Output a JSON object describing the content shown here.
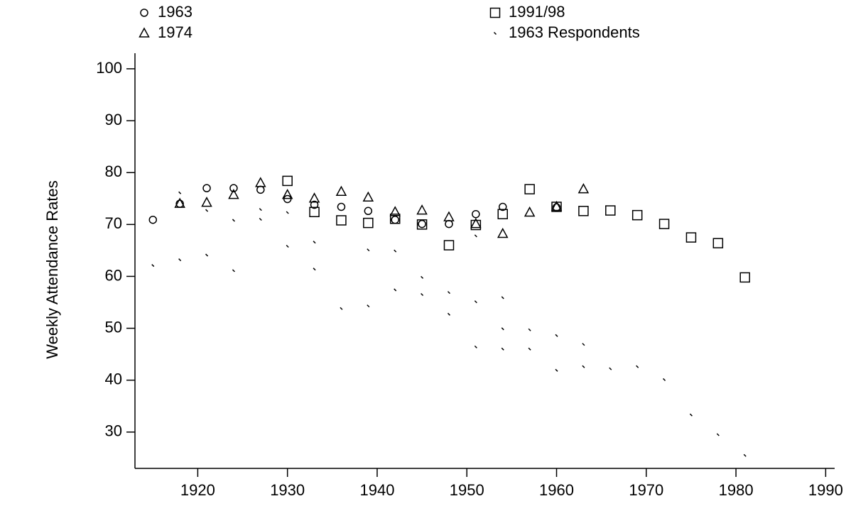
{
  "chart_data": {
    "type": "scatter",
    "y_label": "Weekly Attendance Rates",
    "xlim": [
      1913,
      1991
    ],
    "xticks": [
      1920,
      1930,
      1940,
      1950,
      1960,
      1970,
      1980,
      1990
    ],
    "ylim": [
      23,
      103
    ],
    "yticks": [
      30,
      40,
      50,
      60,
      70,
      80,
      90,
      100
    ],
    "series": [
      {
        "name": "1963",
        "marker": "circle",
        "color": "#000000",
        "x": [
          1915,
          1918,
          1921,
          1924,
          1927,
          1930,
          1933,
          1936,
          1939,
          1942,
          1945,
          1948,
          1951,
          1954,
          1960
        ],
        "values": [
          70.9,
          74,
          77,
          77,
          76.7,
          74.9,
          73.8,
          73.4,
          72.6,
          70.9,
          70.1,
          70.1,
          72,
          73.4,
          73.3
        ]
      },
      {
        "name": "1974",
        "marker": "triangle",
        "color": "#000000",
        "x": [
          1918,
          1921,
          1924,
          1927,
          1930,
          1933,
          1936,
          1939,
          1942,
          1945,
          1948,
          1951,
          1954,
          1957,
          1960,
          1963
        ],
        "values": [
          74,
          74.2,
          75.7,
          78,
          75.7,
          75,
          76.3,
          75.2,
          72.4,
          72.7,
          71.4,
          70.1,
          68.2,
          72.3,
          73.4,
          76.8
        ]
      },
      {
        "name": "1991/98",
        "marker": "square",
        "color": "#000000",
        "x": [
          1930,
          1933,
          1936,
          1939,
          1942,
          1945,
          1948,
          1951,
          1954,
          1957,
          1960,
          1963,
          1966,
          1969,
          1972,
          1975,
          1978,
          1981
        ],
        "values": [
          78.4,
          72.4,
          70.8,
          70.3,
          71.1,
          70,
          66,
          69.9,
          72,
          76.8,
          73.4,
          72.6,
          72.7,
          71.8,
          70.1,
          67.5,
          66.4,
          59.8
        ]
      },
      {
        "name": "1963 Respondents",
        "marker": "dot",
        "color": "#000000",
        "x": [
          1915,
          1918,
          1918,
          1921,
          1921,
          1924,
          1924,
          1927,
          1927,
          1930,
          1930,
          1933,
          1933,
          1936,
          1939,
          1939,
          1942,
          1942,
          1945,
          1945,
          1948,
          1948,
          1951,
          1951,
          1951,
          1954,
          1954,
          1954,
          1957,
          1957,
          1960,
          1960,
          1963,
          1963,
          1966,
          1969,
          1972,
          1975,
          1978,
          1981
        ],
        "values": [
          62.1,
          76.1,
          63.2,
          72.7,
          64.1,
          70.8,
          61.1,
          72.9,
          71,
          72.3,
          65.8,
          66.6,
          61.4,
          53.8,
          65.1,
          54.3,
          64.9,
          57.4,
          59.8,
          56.5,
          56.9,
          52.7,
          67.8,
          55.1,
          46.4,
          55.9,
          49.9,
          46,
          49.7,
          46,
          48.6,
          41.9,
          46.9,
          42.6,
          42.2,
          42.6,
          40.1,
          33.3,
          29.5,
          25.5
        ]
      }
    ]
  }
}
